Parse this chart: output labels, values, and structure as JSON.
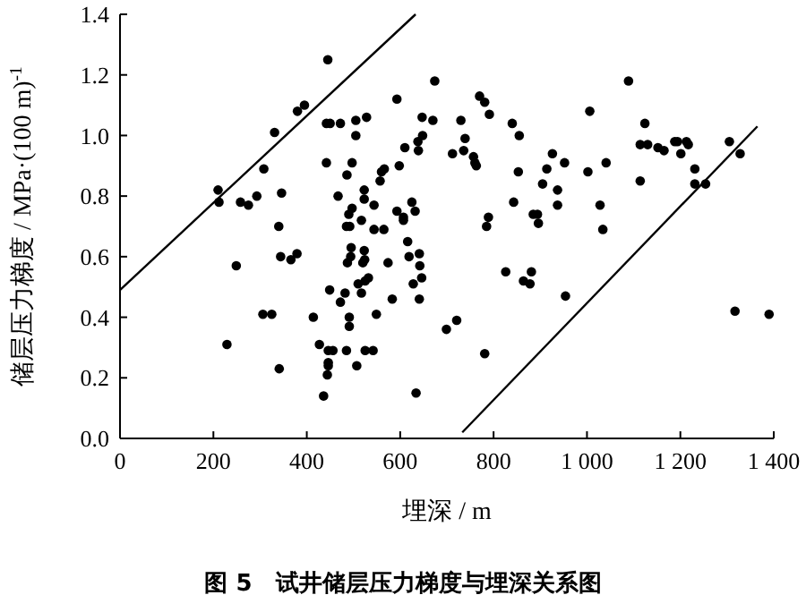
{
  "chart_data": {
    "type": "scatter",
    "title": "图 5　试井储层压力梯度与埋深关系图",
    "xlabel": "埋深 / m",
    "ylabel": "储层压力梯度 / MPa·(100 m)$^{-1}$",
    "xlim": [
      0,
      1400
    ],
    "ylim": [
      0,
      1.4
    ],
    "xticks": [
      0,
      200,
      400,
      600,
      800,
      {
        "value": 1000,
        "label": "1 000"
      },
      {
        "value": 1200,
        "label": "1 200"
      },
      {
        "value": 1400,
        "label": "1 400"
      }
    ],
    "yticks": [
      {
        "value": 0,
        "label": "0.0"
      },
      0.2,
      0.4,
      0.6,
      0.8,
      {
        "value": 1,
        "label": "1.0"
      },
      1.2,
      1.4
    ],
    "grid": false,
    "series": [
      {
        "marker": "circle",
        "color": "#000000",
        "x": [
          445,
          674,
          380,
          395,
          331,
          442,
          450,
          472,
          505,
          528,
          593,
          647,
          670,
          730,
          505,
          648,
          638,
          610,
          639,
          712,
          736,
          442,
          497,
          560,
          566,
          598,
          308,
          486,
          557,
          210,
          212,
          346,
          258,
          275,
          293,
          467,
          523,
          523,
          497,
          490,
          544,
          625,
          632,
          593,
          607,
          607,
          517,
          485,
          492,
          340,
          544,
          565,
          616,
          523,
          344,
          366,
          379,
          249,
          495,
          494,
          487,
          524,
          520,
          574,
          641,
          642,
          646,
          628,
          619,
          532,
          525,
          510,
          449,
          482,
          517,
          472,
          583,
          549,
          641,
          306,
          325,
          414,
          491,
          427,
          229,
          491,
          446,
          456,
          485,
          525,
          542,
          507,
          446,
          446,
          444,
          341,
          436,
          634,
          699,
          721,
          1089,
          770,
          781,
          791,
          1006,
          840,
          1124,
          739,
          855,
          757,
          760,
          763,
          1114,
          1130,
          1152,
          1165,
          1188,
          1194,
          1201,
          1213,
          1217,
          1305,
          1328,
          926,
          952,
          1041,
          914,
          853,
          1002,
          1231,
          905,
          937,
          937,
          1114,
          1231,
          1254,
          843,
          885,
          894,
          1028,
          789,
          785,
          896,
          1034,
          826,
          864,
          878,
          881,
          954,
          781,
          1317,
          1390
        ],
        "values": [
          1.25,
          1.18,
          1.08,
          1.1,
          1.01,
          1.04,
          1.04,
          1.04,
          1.05,
          1.06,
          1.12,
          1.06,
          1.05,
          1.05,
          1.0,
          1.0,
          0.98,
          0.96,
          0.95,
          0.94,
          0.95,
          0.91,
          0.91,
          0.88,
          0.89,
          0.9,
          0.89,
          0.87,
          0.85,
          0.82,
          0.78,
          0.81,
          0.78,
          0.77,
          0.8,
          0.8,
          0.82,
          0.79,
          0.76,
          0.74,
          0.77,
          0.78,
          0.75,
          0.75,
          0.73,
          0.72,
          0.72,
          0.7,
          0.7,
          0.7,
          0.69,
          0.69,
          0.65,
          0.62,
          0.6,
          0.59,
          0.61,
          0.57,
          0.63,
          0.6,
          0.58,
          0.59,
          0.58,
          0.58,
          0.61,
          0.57,
          0.53,
          0.51,
          0.6,
          0.53,
          0.52,
          0.51,
          0.49,
          0.48,
          0.48,
          0.45,
          0.46,
          0.41,
          0.46,
          0.41,
          0.41,
          0.4,
          0.4,
          0.31,
          0.31,
          0.37,
          0.29,
          0.29,
          0.29,
          0.29,
          0.29,
          0.24,
          0.25,
          0.24,
          0.21,
          0.23,
          0.14,
          0.15,
          0.36,
          0.39,
          1.18,
          1.13,
          1.11,
          1.07,
          1.08,
          1.04,
          1.04,
          0.99,
          1.0,
          0.93,
          0.91,
          0.9,
          0.97,
          0.97,
          0.96,
          0.95,
          0.98,
          0.98,
          0.94,
          0.98,
          0.97,
          0.98,
          0.94,
          0.94,
          0.91,
          0.91,
          0.89,
          0.88,
          0.88,
          0.89,
          0.84,
          0.82,
          0.77,
          0.85,
          0.84,
          0.84,
          0.78,
          0.74,
          0.74,
          0.77,
          0.73,
          0.7,
          0.71,
          0.69,
          0.55,
          0.52,
          0.51,
          0.55,
          0.47,
          0.28,
          0.42,
          0.41
        ]
      },
      {
        "type": "line",
        "color": "#000000",
        "x": [
          0,
          633
        ],
        "values": [
          0.49,
          1.4
        ]
      },
      {
        "type": "line",
        "color": "#000000",
        "x": [
          733,
          1365
        ],
        "values": [
          0.02,
          1.03
        ]
      }
    ]
  }
}
